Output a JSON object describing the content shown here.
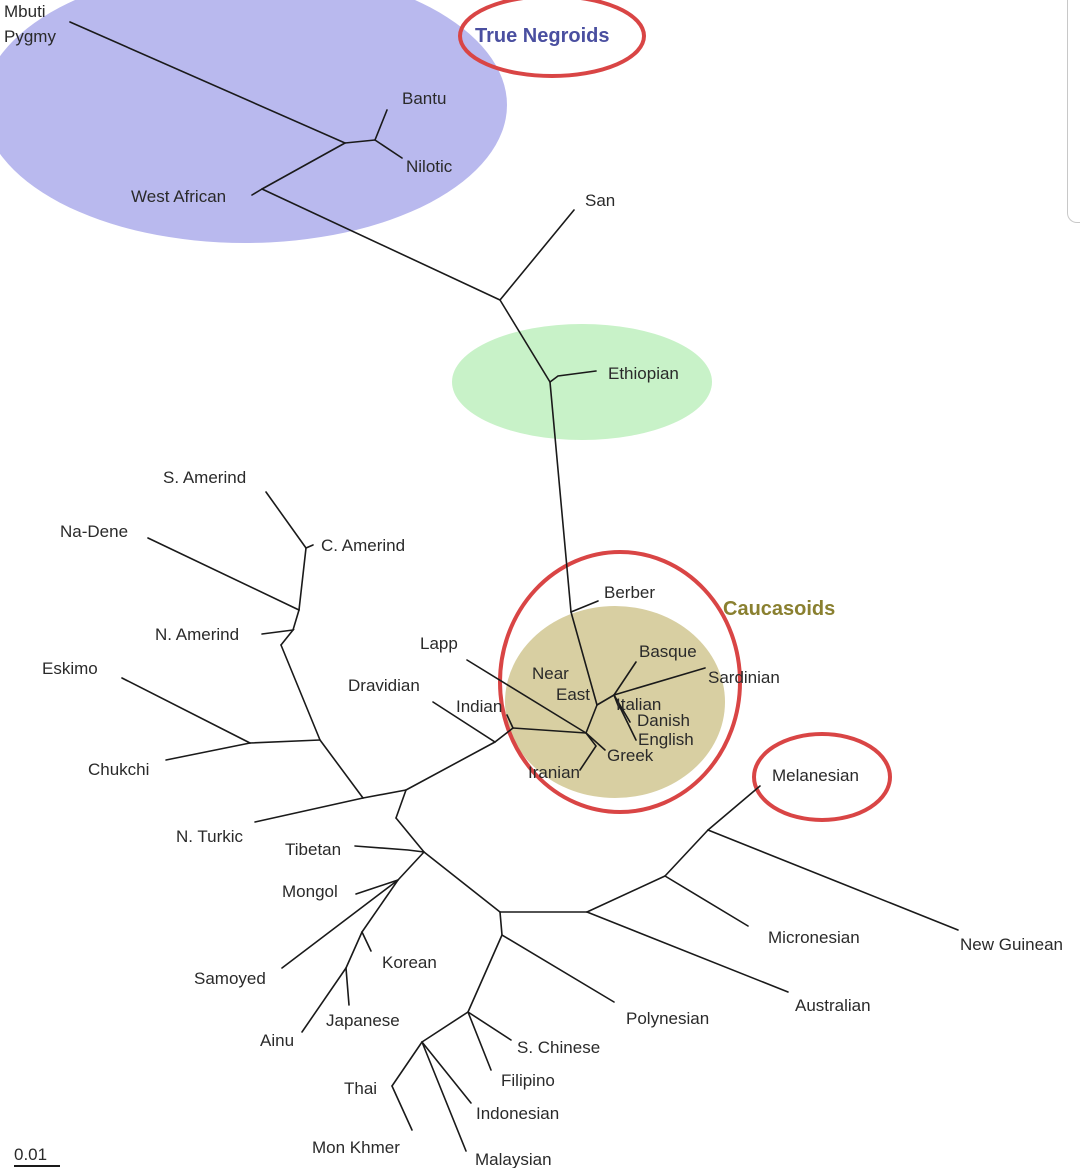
{
  "groups": {
    "negroids": "True Negroids",
    "caucasoids": "Caucasoids"
  },
  "scale": "0.01",
  "colors": {
    "blue_region": "#b9b9ee",
    "green_region": "#c8f2c8",
    "tan_region": "#d8cfa2",
    "circle": "#d94545",
    "negroids_text": "#4a4fa0",
    "caucasoids_text": "#8a8030"
  },
  "labels": {
    "mbuti": "Mbuti",
    "pygmy": "Pygmy",
    "bantu": "Bantu",
    "nilotic": "Nilotic",
    "west_african": "West African",
    "san": "San",
    "ethiopian": "Ethiopian",
    "s_amerind": "S. Amerind",
    "c_amerind": "C. Amerind",
    "na_dene": "Na-Dene",
    "n_amerind": "N. Amerind",
    "eskimo": "Eskimo",
    "chukchi": "Chukchi",
    "n_turkic": "N. Turkic",
    "tibetan": "Tibetan",
    "mongol": "Mongol",
    "samoyed": "Samoyed",
    "korean": "Korean",
    "ainu": "Ainu",
    "japanese": "Japanese",
    "thai": "Thai",
    "mon_khmer": "Mon Khmer",
    "malaysian": "Malaysian",
    "indonesian": "Indonesian",
    "filipino": "Filipino",
    "s_chinese": "S. Chinese",
    "polynesian": "Polynesian",
    "australian": "Australian",
    "micronesian": "Micronesian",
    "new_guinean": "New Guinean",
    "melanesian": "Melanesian",
    "berber": "Berber",
    "lapp": "Lapp",
    "dravidian": "Dravidian",
    "indian": "Indian",
    "near": "Near",
    "east": "East",
    "basque": "Basque",
    "sardinian": "Sardinian",
    "italian": "Italian",
    "danish": "Danish",
    "english": "English",
    "greek": "Greek",
    "iranian": "Iranian"
  }
}
